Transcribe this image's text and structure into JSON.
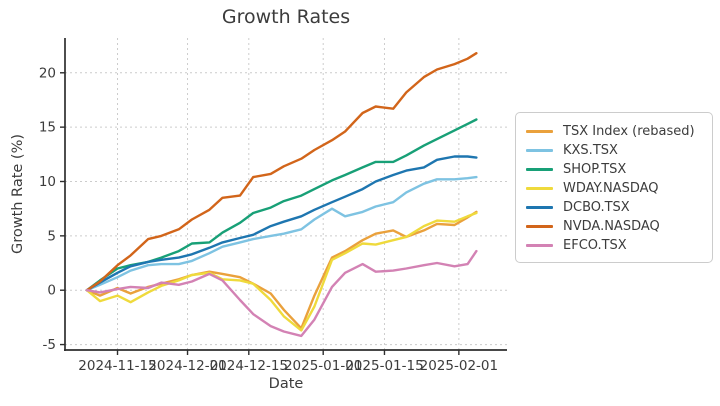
{
  "figure": {
    "title": "Growth Rates",
    "xlabel": "Date",
    "ylabel": "Growth Rate (%)"
  },
  "chart_data": {
    "type": "line",
    "title": "Growth Rates",
    "xlabel": "Date",
    "ylabel": "Growth Rate (%)",
    "grid": true,
    "grid_style": "dashed",
    "legend_position": "right-outside",
    "axis_color": "#2e2e2e",
    "grid_color": "#cccccc",
    "text_color": "#3c3c3c",
    "xlim": [
      "2024-11-03",
      "2025-02-12"
    ],
    "ylim": [
      -5.5,
      23.2
    ],
    "xticks": [
      "2024-11-15",
      "2024-12-01",
      "2024-12-15",
      "2025-01-01",
      "2025-01-15",
      "2025-02-01"
    ],
    "yticks": [
      -5,
      0,
      5,
      10,
      15,
      20
    ],
    "x": [
      "2024-11-08",
      "2024-11-11",
      "2024-11-15",
      "2024-11-18",
      "2024-11-22",
      "2024-11-25",
      "2024-11-29",
      "2024-12-02",
      "2024-12-06",
      "2024-12-09",
      "2024-12-13",
      "2024-12-16",
      "2024-12-20",
      "2024-12-23",
      "2024-12-27",
      "2024-12-30",
      "2025-01-03",
      "2025-01-06",
      "2025-01-10",
      "2025-01-13",
      "2025-01-17",
      "2025-01-20",
      "2025-01-24",
      "2025-01-27",
      "2025-01-31",
      "2025-02-03",
      "2025-02-05"
    ],
    "series": [
      {
        "name": "TSX Index (rebased)",
        "color": "#EAA13C",
        "values": [
          0,
          -0.5,
          0.2,
          -0.3,
          0.3,
          0.6,
          1.0,
          1.4,
          1.7,
          1.5,
          1.2,
          0.6,
          -0.3,
          -1.8,
          -3.5,
          -0.5,
          3.0,
          3.6,
          4.6,
          5.2,
          5.5,
          4.9,
          5.5,
          6.1,
          6.0,
          6.7,
          7.2
        ]
      },
      {
        "name": "KXS.TSX",
        "color": "#7EC3E2",
        "values": [
          0,
          0.5,
          1.2,
          1.8,
          2.3,
          2.4,
          2.4,
          2.7,
          3.4,
          4.0,
          4.4,
          4.7,
          5.0,
          5.2,
          5.6,
          6.5,
          7.5,
          6.8,
          7.2,
          7.7,
          8.1,
          9.0,
          9.8,
          10.2,
          10.2,
          10.3,
          10.4
        ]
      },
      {
        "name": "SHOP.TSX",
        "color": "#18A077",
        "values": [
          0,
          0.9,
          2.0,
          2.3,
          2.6,
          3.0,
          3.6,
          4.3,
          4.4,
          5.3,
          6.2,
          7.1,
          7.6,
          8.2,
          8.7,
          9.3,
          10.1,
          10.6,
          11.3,
          11.8,
          11.8,
          12.4,
          13.3,
          13.9,
          14.7,
          15.3,
          15.7
        ]
      },
      {
        "name": "WDAY.NASDAQ",
        "color": "#EFDA3C",
        "values": [
          0,
          -1.0,
          -0.5,
          -1.1,
          -0.2,
          0.4,
          0.9,
          1.4,
          1.6,
          1.0,
          0.9,
          0.6,
          -0.9,
          -2.4,
          -3.7,
          -1.5,
          2.8,
          3.4,
          4.3,
          4.2,
          4.6,
          4.9,
          5.9,
          6.4,
          6.3,
          6.8,
          7.1
        ]
      },
      {
        "name": "DCBO.TSX",
        "color": "#1E76B0",
        "values": [
          0,
          0.7,
          1.6,
          2.2,
          2.6,
          2.8,
          3.0,
          3.3,
          3.9,
          4.4,
          4.8,
          5.1,
          5.9,
          6.3,
          6.8,
          7.4,
          8.1,
          8.6,
          9.3,
          10.0,
          10.6,
          11.0,
          11.3,
          12.0,
          12.3,
          12.3,
          12.2
        ]
      },
      {
        "name": "NVDA.NASDAQ",
        "color": "#D2651A",
        "values": [
          0,
          0.8,
          2.3,
          3.2,
          4.7,
          5.0,
          5.6,
          6.5,
          7.4,
          8.5,
          8.7,
          10.4,
          10.7,
          11.4,
          12.1,
          12.9,
          13.8,
          14.6,
          16.3,
          16.9,
          16.7,
          18.2,
          19.6,
          20.3,
          20.8,
          21.3,
          21.8
        ]
      },
      {
        "name": "EFCO.TSX",
        "color": "#D382B4",
        "values": [
          0,
          -0.2,
          0.1,
          0.3,
          0.2,
          0.7,
          0.5,
          0.8,
          1.5,
          0.9,
          -0.9,
          -2.2,
          -3.3,
          -3.8,
          -4.2,
          -2.7,
          0.3,
          1.6,
          2.4,
          1.7,
          1.8,
          2.0,
          2.3,
          2.5,
          2.2,
          2.4,
          3.6
        ]
      }
    ]
  }
}
